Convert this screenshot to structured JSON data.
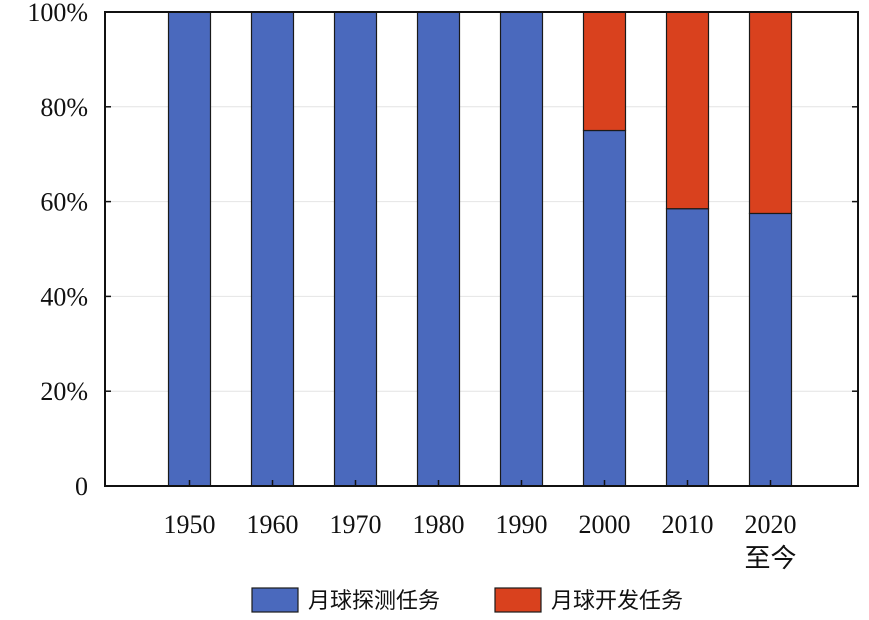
{
  "chart_data": {
    "type": "bar",
    "stacked": true,
    "categories": [
      "1950",
      "1960",
      "1970",
      "1980",
      "1990",
      "2000",
      "2010",
      "2020\n至今"
    ],
    "series": [
      {
        "name": "月球探测任务",
        "color": "#4a69bd",
        "values": [
          100,
          100,
          100,
          100,
          100,
          75,
          58.5,
          57.5
        ]
      },
      {
        "name": "月球开发任务",
        "color": "#d9411e",
        "values": [
          0,
          0,
          0,
          0,
          0,
          25,
          41.5,
          42.5
        ]
      }
    ],
    "y_ticks": [
      "0",
      "20%",
      "40%",
      "60%",
      "80%",
      "100%"
    ],
    "ylim": [
      0,
      100
    ],
    "grid": true,
    "legend": "bottom-center"
  }
}
